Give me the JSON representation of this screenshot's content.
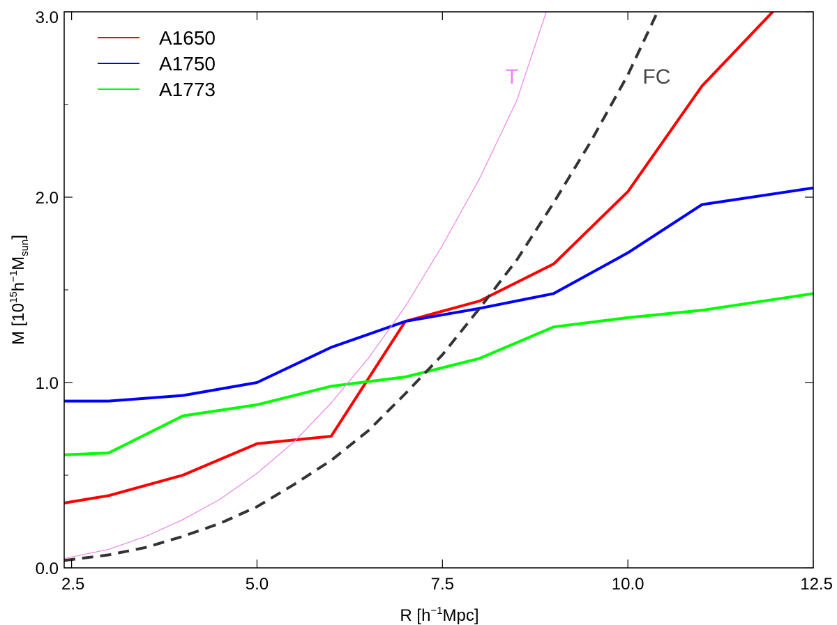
{
  "chart_data": {
    "type": "line",
    "title": "",
    "xlabel_base": "R [h",
    "xlabel_sup": "−1",
    "xlabel_rest": "Mpc]",
    "ylabel_base": "M [10",
    "ylabel_sup1": "15",
    "ylabel_mid": "h",
    "ylabel_sup2": "−1",
    "ylabel_m": "M",
    "ylabel_sub": "sun",
    "ylabel_end": "]",
    "xlim": [
      2.4,
      12.5
    ],
    "ylim": [
      0,
      3
    ],
    "xticks": [
      2.5,
      5.0,
      7.5,
      10.0,
      12.5
    ],
    "xtick_labels": [
      "2.5",
      "5.0",
      "7.5",
      "10.0",
      "12.5"
    ],
    "yticks": [
      0,
      1,
      2,
      3
    ],
    "ytick_labels": [
      "0.0",
      "1.0",
      "2.0",
      "3.0"
    ],
    "legend_position": "top-left",
    "series": [
      {
        "name": "A1650",
        "color": "#ff0000",
        "style": "solid-thick",
        "in_legend": true,
        "x": [
          2.4,
          3,
          4,
          5,
          6,
          7,
          8,
          9,
          10,
          11,
          12
        ],
        "y": [
          0.35,
          0.39,
          0.5,
          0.67,
          0.71,
          1.33,
          1.44,
          1.64,
          2.03,
          2.6,
          3.02
        ]
      },
      {
        "name": "A1750",
        "color": "#0000ff",
        "style": "solid-thick",
        "in_legend": true,
        "x": [
          2.4,
          3,
          4,
          5,
          6,
          7,
          8,
          9,
          10,
          11,
          12,
          12.5
        ],
        "y": [
          0.9,
          0.9,
          0.93,
          1.0,
          1.19,
          1.33,
          1.4,
          1.48,
          1.7,
          1.96,
          2.02,
          2.05
        ]
      },
      {
        "name": "A1773",
        "color": "#00ff00",
        "style": "solid-thick",
        "in_legend": true,
        "x": [
          2.4,
          3,
          4,
          5,
          6,
          7,
          8,
          9,
          10,
          11,
          12,
          12.5
        ],
        "y": [
          0.61,
          0.62,
          0.82,
          0.88,
          0.98,
          1.03,
          1.13,
          1.3,
          1.35,
          1.39,
          1.45,
          1.48
        ]
      },
      {
        "name": "T",
        "color": "#ee82ee",
        "style": "solid-thin",
        "in_legend": false,
        "x": [
          2.4,
          3,
          3.5,
          4,
          4.5,
          5,
          5.5,
          6,
          6.5,
          7,
          7.5,
          8,
          8.5,
          8.9
        ],
        "y": [
          0.05,
          0.1,
          0.17,
          0.26,
          0.37,
          0.51,
          0.68,
          0.89,
          1.13,
          1.41,
          1.74,
          2.1,
          2.52,
          3.0
        ]
      },
      {
        "name": "FC",
        "color": "#333333",
        "style": "dashed",
        "in_legend": false,
        "x": [
          2.4,
          3,
          3.5,
          4,
          4.5,
          5,
          5.5,
          6,
          6.5,
          7,
          7.5,
          8,
          8.5,
          9,
          9.5,
          10,
          10.4
        ],
        "y": [
          0.04,
          0.07,
          0.11,
          0.17,
          0.24,
          0.33,
          0.45,
          0.58,
          0.74,
          0.94,
          1.15,
          1.4,
          1.66,
          1.97,
          2.3,
          2.66,
          3.0
        ]
      }
    ],
    "annotations": [
      {
        "text": "T",
        "color": "#ee82ee",
        "x": 8.35,
        "y": 2.65
      },
      {
        "text": "FC",
        "color": "#444444",
        "x": 10.2,
        "y": 2.65
      }
    ]
  }
}
